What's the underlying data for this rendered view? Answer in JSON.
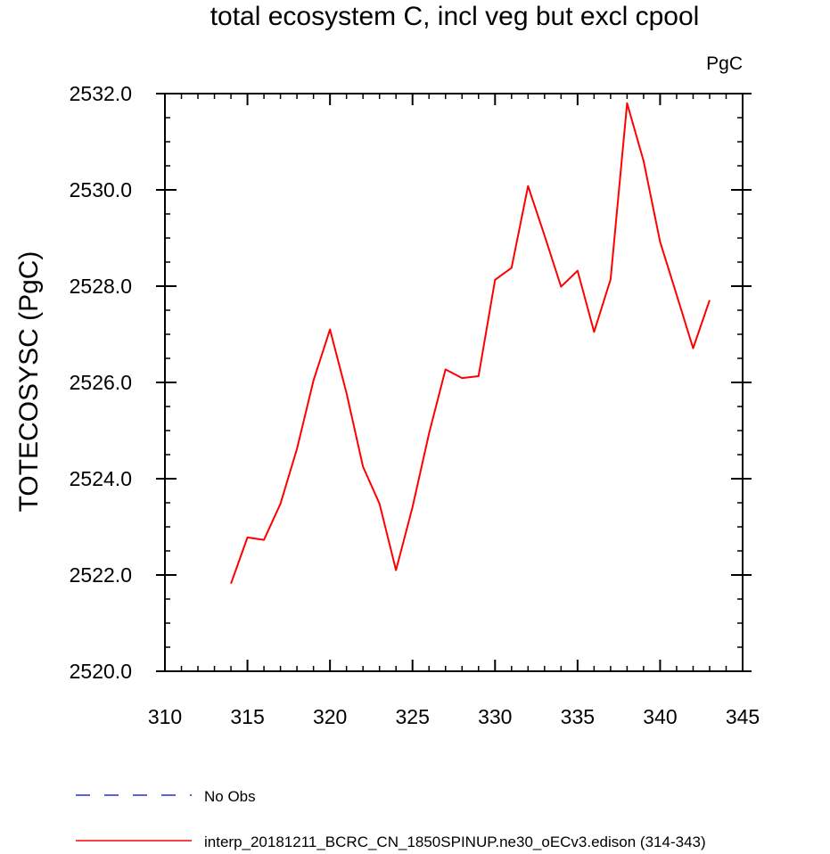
{
  "chart_data": {
    "type": "line",
    "title": "total ecosystem C, incl veg but excl cpool",
    "units_label": "PgC",
    "ylabel": "TOTECOSYSC  (PgC)",
    "xlabel": "",
    "xlim": [
      310,
      345
    ],
    "ylim": [
      2520.0,
      2532.0
    ],
    "x_ticks": [
      310,
      315,
      320,
      325,
      330,
      335,
      340,
      345
    ],
    "x_tick_labels": [
      "310",
      "315",
      "320",
      "325",
      "330",
      "335",
      "340",
      "345"
    ],
    "y_ticks": [
      2520.0,
      2522.0,
      2524.0,
      2526.0,
      2528.0,
      2530.0,
      2532.0
    ],
    "y_tick_labels": [
      "2520.0",
      "2522.0",
      "2524.0",
      "2526.0",
      "2528.0",
      "2530.0",
      "2532.0"
    ],
    "grid": false,
    "legend_position": "bottom",
    "legend": [
      {
        "name": "No Obs",
        "color": "#0000cc",
        "style": "dashed"
      },
      {
        "name": "interp_20181211_BCRC_CN_1850SPINUP.ne30_oECv3.edison (314-343)",
        "color": "#ff0000",
        "style": "solid"
      }
    ],
    "series": [
      {
        "name": "interp_20181211_BCRC_CN_1850SPINUP.ne30_oECv3.edison (314-343)",
        "color": "#ff0000",
        "x": [
          314,
          315,
          316,
          317,
          318,
          319,
          320,
          321,
          322,
          323,
          324,
          325,
          326,
          327,
          328,
          329,
          330,
          331,
          332,
          333,
          334,
          335,
          336,
          337,
          338,
          339,
          340,
          341,
          342,
          343
        ],
        "y": [
          2521.82,
          2522.78,
          2522.73,
          2523.48,
          2524.62,
          2526.04,
          2527.1,
          2525.78,
          2524.25,
          2523.48,
          2522.1,
          2523.41,
          2524.94,
          2526.27,
          2526.09,
          2526.13,
          2528.13,
          2528.38,
          2530.08,
          2529.05,
          2527.99,
          2528.32,
          2527.05,
          2528.14,
          2531.8,
          2530.6,
          2528.92,
          2527.82,
          2526.71,
          2527.71
        ]
      }
    ]
  }
}
